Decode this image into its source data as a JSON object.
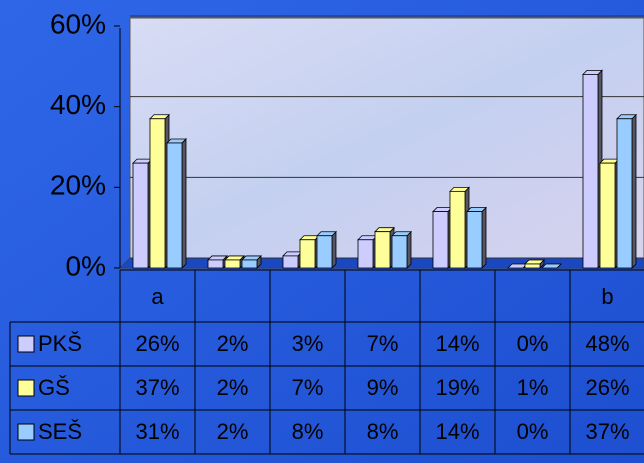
{
  "chart_data": {
    "type": "bar",
    "categories": [
      "a",
      null,
      null,
      null,
      null,
      null,
      "b"
    ],
    "series": [
      {
        "name": "PKŠ",
        "color": "#ccccff",
        "values": [
          26,
          2,
          3,
          7,
          14,
          0,
          48
        ],
        "value_labels": [
          "26%",
          "2%",
          "3%",
          "7%",
          "14%",
          "0%",
          "48%"
        ]
      },
      {
        "name": "GŠ",
        "color": "#ffff99",
        "values": [
          37,
          2,
          7,
          9,
          19,
          1,
          26
        ],
        "value_labels": [
          "37%",
          "2%",
          "7%",
          "9%",
          "19%",
          "1%",
          "26%"
        ]
      },
      {
        "name": "SEŠ",
        "color": "#99ccff",
        "values": [
          31,
          2,
          8,
          8,
          14,
          0,
          37
        ],
        "value_labels": [
          "31%",
          "2%",
          "8%",
          "8%",
          "14%",
          "0%",
          "37%"
        ]
      }
    ],
    "ylim": [
      0,
      60
    ],
    "yticks": [
      {
        "value": 0,
        "label": "0%"
      },
      {
        "value": 20,
        "label": "20%"
      },
      {
        "value": 40,
        "label": "40%"
      },
      {
        "value": 60,
        "label": "60%"
      }
    ],
    "grid": true
  }
}
